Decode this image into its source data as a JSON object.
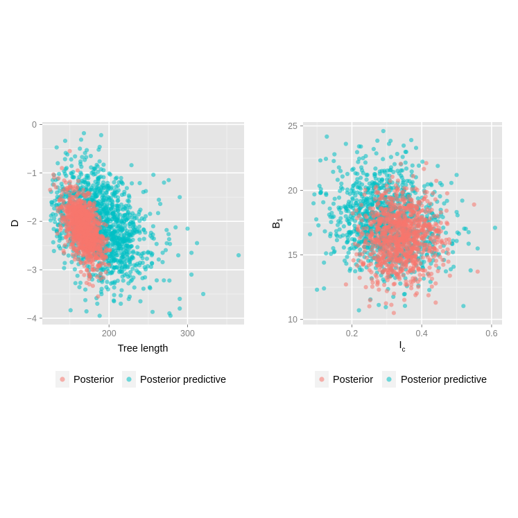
{
  "chart_data": [
    {
      "type": "scatter",
      "title": "",
      "xlabel": "Tree length",
      "ylabel": "D",
      "xlim": [
        115,
        372
      ],
      "ylim": [
        -4.13,
        0.05
      ],
      "xticks": [
        200,
        300
      ],
      "xtick_labels": [
        "200",
        "300"
      ],
      "yticks": [
        0,
        -1,
        -2,
        -3,
        -4
      ],
      "ytick_labels": [
        "0",
        "−1",
        "−2",
        "−3",
        "−4"
      ],
      "grid": true,
      "legend_position": "bottom",
      "series": [
        {
          "name": "Posterior",
          "color": "#F8766D",
          "cloud": {
            "n": 1000,
            "x_mean": 168,
            "x_sd": 13,
            "y_mean": -2.15,
            "y_sd": 0.38,
            "correlation": -0.55,
            "x_range": [
              128,
              212
            ],
            "y_range": [
              -3.5,
              -0.55
            ]
          },
          "points": [
            [
              150,
              -0.55
            ],
            [
              160,
              -0.95
            ],
            [
              140,
              -0.9
            ],
            [
              130,
              -1.1
            ],
            [
              145,
              -1.2
            ],
            [
              186,
              -3.55
            ],
            [
              175,
              -3.3
            ],
            [
              200,
              -2.9
            ],
            [
              125,
              -1.35
            ]
          ]
        },
        {
          "name": "Posterior predictive",
          "color": "#00BFC4",
          "cloud": {
            "n": 1300,
            "x_mean": 188,
            "x_sd": 32,
            "y_mean": -2.1,
            "y_sd": 0.62,
            "correlation": -0.35,
            "x_range": [
              125,
              300
            ],
            "y_range": [
              -4.0,
              -0.3
            ]
          },
          "points": [
            [
              168,
              -0.18
            ],
            [
              190,
              -0.22
            ],
            [
              365,
              -2.7
            ],
            [
              305,
              -3.1
            ],
            [
              312,
              -2.45
            ],
            [
              320,
              -3.5
            ],
            [
              290,
              -3.8
            ],
            [
              188,
              -3.95
            ],
            [
              185,
              -3.7
            ],
            [
              270,
              -1.2
            ],
            [
              300,
              -2.15
            ],
            [
              240,
              -3.65
            ],
            [
              290,
              -3.6
            ],
            [
              215,
              -3.7
            ],
            [
              290,
              -1.5
            ],
            [
              305,
              -2.65
            ]
          ]
        }
      ]
    },
    {
      "type": "scatter",
      "title": "",
      "xlabel": "I",
      "xlabel_subscript": "c",
      "ylabel": "B",
      "ylabel_subscript": "1",
      "xlim": [
        0.06,
        0.63
      ],
      "ylim": [
        9.6,
        25.3
      ],
      "xticks": [
        0.2,
        0.4,
        0.6
      ],
      "xtick_labels": [
        "0.2",
        "0.4",
        "0.6"
      ],
      "yticks": [
        10,
        15,
        20,
        25
      ],
      "ytick_labels": [
        "10",
        "15",
        "20",
        "25"
      ],
      "grid": true,
      "legend_position": "bottom",
      "series": [
        {
          "name": "Posterior",
          "color": "#F8766D",
          "cloud": {
            "n": 1000,
            "x_mean": 0.34,
            "x_sd": 0.055,
            "y_mean": 16.3,
            "y_sd": 1.8,
            "correlation": 0.0,
            "x_range": [
              0.17,
              0.56
            ],
            "y_range": [
              10.5,
              22.5
            ]
          },
          "points": [
            [
              0.32,
              10.5
            ],
            [
              0.56,
              13.7
            ],
            [
              0.55,
              18.9
            ],
            [
              0.24,
              12.5
            ],
            [
              0.44,
              11.3
            ]
          ]
        },
        {
          "name": "Posterior predictive",
          "color": "#00BFC4",
          "cloud": {
            "n": 1100,
            "x_mean": 0.3,
            "x_sd": 0.08,
            "y_mean": 17.6,
            "y_sd": 2.1,
            "correlation": -0.2,
            "x_range": [
              0.09,
              0.56
            ],
            "y_range": [
              10.4,
              24.6
            ]
          },
          "points": [
            [
              0.29,
              24.6
            ],
            [
              0.37,
              23.9
            ],
            [
              0.61,
              17.1
            ],
            [
              0.09,
              19.0
            ],
            [
              0.1,
              12.3
            ],
            [
              0.12,
              12.4
            ],
            [
              0.22,
              10.7
            ],
            [
              0.15,
              22.8
            ],
            [
              0.56,
              15.5
            ],
            [
              0.54,
              13.8
            ],
            [
              0.5,
              21.2
            ],
            [
              0.08,
              16.6
            ],
            [
              0.12,
              14.4
            ]
          ]
        }
      ]
    }
  ]
}
